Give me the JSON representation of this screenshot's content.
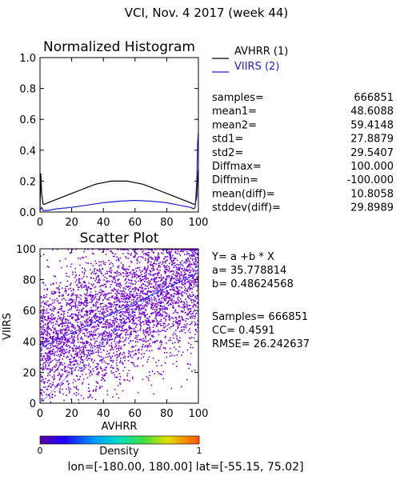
{
  "header": {
    "title": "VCI,  Nov. 4 2017 (week 44)"
  },
  "colors": {
    "avhrr": "#000000",
    "viirs": "#2020d0",
    "scatter": "#7000d8",
    "fit_line": "#2a3cff"
  },
  "chart_data": [
    {
      "type": "line",
      "title": "Normalized Histogram",
      "xlabel": "",
      "ylabel": "",
      "xlim": [
        0,
        100
      ],
      "ylim": [
        0,
        1.0
      ],
      "x_ticks": [
        "0",
        "20",
        "40",
        "60",
        "80",
        "100"
      ],
      "y_ticks": [
        "0.0",
        "0.2",
        "0.4",
        "0.6",
        "0.8",
        "1.0"
      ],
      "legend_position": "right",
      "series": [
        {
          "name": "AVHRR (1)",
          "color": "#000000",
          "x": [
            0,
            0.5,
            1,
            2,
            3,
            5,
            10,
            15,
            20,
            25,
            30,
            35,
            40,
            45,
            50,
            55,
            60,
            65,
            70,
            75,
            80,
            85,
            90,
            95,
            97,
            98,
            99,
            99.5,
            100
          ],
          "y": [
            0.02,
            0.25,
            0.12,
            0.05,
            0.05,
            0.06,
            0.08,
            0.1,
            0.12,
            0.14,
            0.16,
            0.18,
            0.19,
            0.2,
            0.2,
            0.2,
            0.19,
            0.18,
            0.16,
            0.14,
            0.12,
            0.1,
            0.08,
            0.06,
            0.05,
            0.05,
            0.1,
            0.22,
            0.28
          ]
        },
        {
          "name": "VIIRS (2)",
          "color": "#2020d0",
          "x": [
            0,
            1,
            2,
            3,
            5,
            10,
            20,
            30,
            40,
            50,
            60,
            70,
            80,
            90,
            95,
            97,
            98,
            99,
            99.5,
            100
          ],
          "y": [
            0.01,
            0.03,
            0.01,
            0.01,
            0.01,
            0.02,
            0.03,
            0.045,
            0.06,
            0.07,
            0.075,
            0.07,
            0.06,
            0.04,
            0.03,
            0.02,
            0.03,
            0.2,
            0.45,
            0.52
          ]
        }
      ]
    },
    {
      "type": "scatter",
      "title": "Scatter Plot",
      "xlabel": "AVHRR",
      "ylabel": "VIIRS",
      "xlim": [
        0,
        100
      ],
      "ylim": [
        0,
        100
      ],
      "x_ticks": [
        "0",
        "20",
        "40",
        "60",
        "80",
        "100"
      ],
      "y_ticks": [
        "0",
        "20",
        "40",
        "60",
        "80",
        "100"
      ],
      "fit": {
        "a": 35.778814,
        "b": 0.48624568
      },
      "points_description_density_colorbar": true
    }
  ],
  "stats": [
    {
      "label": "samples=",
      "value": "666851"
    },
    {
      "label": "mean1=",
      "value": "48.6088"
    },
    {
      "label": "mean2=",
      "value": "59.4148"
    },
    {
      "label": "std1=",
      "value": "27.8879"
    },
    {
      "label": "std2=",
      "value": "29.5407"
    },
    {
      "label": "Diffmax=",
      "value": "100.000"
    },
    {
      "label": "Diffmin=",
      "value": "-100.000"
    },
    {
      "label": "mean(diff)=",
      "value": "10.8058"
    },
    {
      "label": "stddev(diff)=",
      "value": "29.8989"
    }
  ],
  "regression": {
    "equation": "Y= a +b * X",
    "a_line": "a= 35.778814",
    "b_line": "b= 0.48624568",
    "samples_line": "Samples= 666851",
    "cc_line": "CC=  0.4591",
    "rmse_line": "RMSE= 26.242637"
  },
  "colorbar": {
    "label": "Density",
    "min": "0",
    "max": "1"
  },
  "footer": {
    "extent": "lon=[-180.00, 180.00] lat=[-55.15, 75.02]"
  }
}
